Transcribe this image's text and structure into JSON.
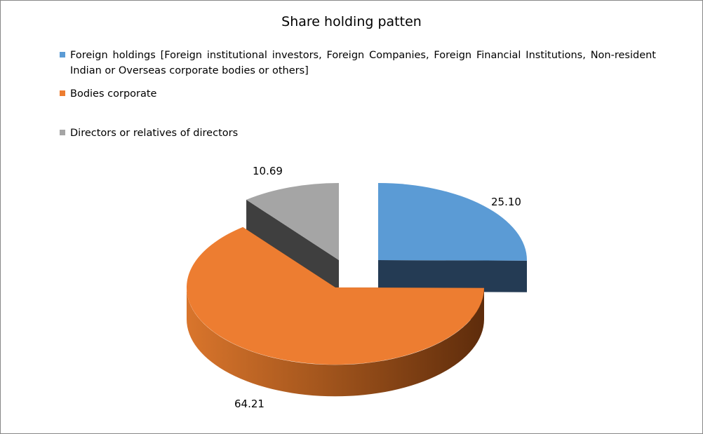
{
  "chart_data": {
    "type": "pie",
    "title": "Share holding patten",
    "style": "3d-exploded",
    "legend_position": "top",
    "categories": [
      "Foreign holdings [Foreign institutional investors, Foreign Companies, Foreign Financial Institutions, Non-resident Indian or Overseas corporate bodies or others]",
      "Bodies corporate",
      "Directors or relatives of directors"
    ],
    "values": [
      25.1,
      64.21,
      10.69
    ],
    "value_labels": [
      "25.10",
      "64.21",
      "10.69"
    ],
    "colors": [
      "#5B9BD5",
      "#ED7D31",
      "#A5A5A5"
    ],
    "side_colors": [
      "#243B54",
      "#7A3E12",
      "#3F3F3F"
    ]
  }
}
